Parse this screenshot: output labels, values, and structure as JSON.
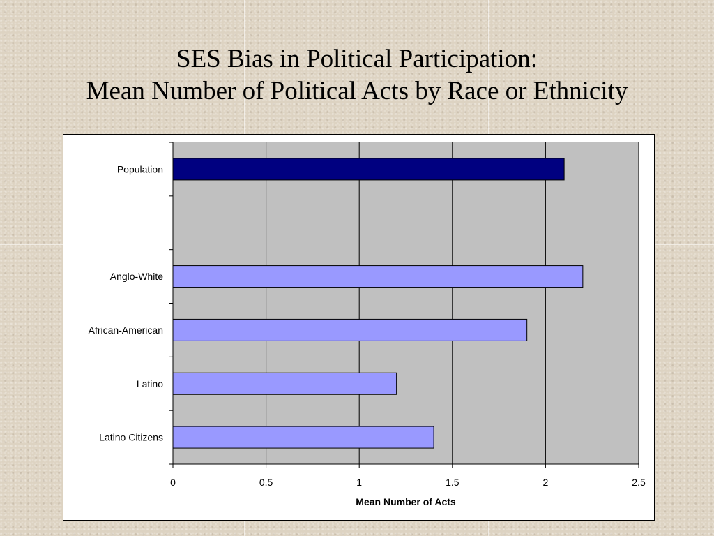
{
  "slide": {
    "title_line1": "SES Bias in Political Participation:",
    "title_line2": "Mean Number of Political Acts by Race or Ethnicity"
  },
  "colors": {
    "population_bar": "#000080",
    "group_bar": "#9999ff",
    "plot_bg": "#c0c0c0",
    "gridline": "#000000"
  },
  "chart_data": {
    "type": "bar",
    "orientation": "horizontal",
    "categories": [
      "Population",
      "",
      "Anglo-White",
      "African-American",
      "Latino",
      "Latino Citizens"
    ],
    "values": [
      2.1,
      null,
      2.2,
      1.9,
      1.2,
      1.4
    ],
    "xlabel": "Mean Number of Acts",
    "ylabel": "",
    "xlim": [
      0,
      2.5
    ],
    "xticks": [
      0,
      0.5,
      1,
      1.5,
      2,
      2.5
    ],
    "xtick_labels": [
      "0",
      "0.5",
      "1",
      "1.5",
      "2",
      "2.5"
    ],
    "grid": true,
    "legend": "none"
  }
}
